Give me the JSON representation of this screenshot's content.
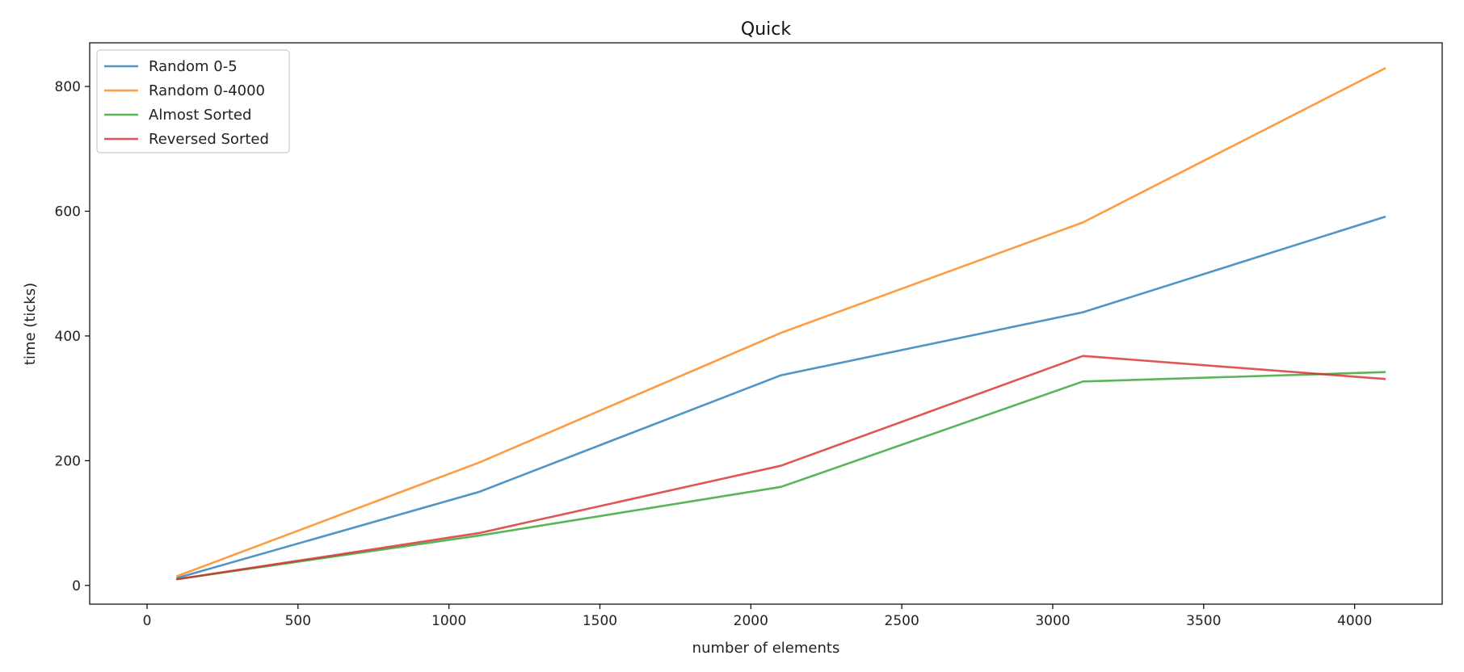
{
  "chart_data": {
    "type": "line",
    "title": "Quick",
    "xlabel": "number of elements",
    "ylabel": "time (ticks)",
    "xlim": [
      -190,
      4290
    ],
    "ylim": [
      -30,
      870
    ],
    "xticks": [
      0,
      500,
      1000,
      1500,
      2000,
      2500,
      3000,
      3500,
      4000
    ],
    "yticks": [
      0,
      200,
      400,
      600,
      800
    ],
    "x": [
      100,
      1100,
      2100,
      3100,
      4100
    ],
    "grid": false,
    "legend_position": "top-left",
    "series": [
      {
        "name": "Random 0-5",
        "color": "#1f77b4",
        "values": [
          12,
          150,
          337,
          438,
          591
        ]
      },
      {
        "name": "Random 0-4000",
        "color": "#ff7f0e",
        "values": [
          15,
          197,
          405,
          582,
          829
        ]
      },
      {
        "name": "Almost Sorted",
        "color": "#2ca02c",
        "values": [
          10,
          80,
          158,
          327,
          342
        ]
      },
      {
        "name": "Reversed Sorted",
        "color": "#d62728",
        "values": [
          10,
          84,
          192,
          368,
          331
        ]
      }
    ]
  }
}
